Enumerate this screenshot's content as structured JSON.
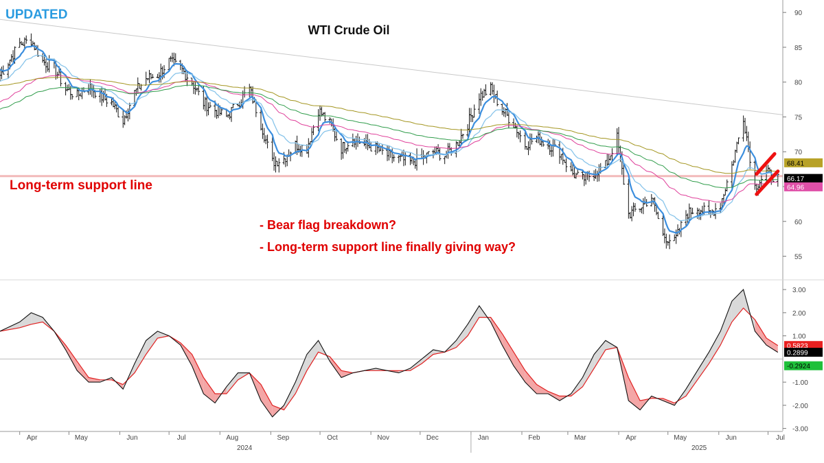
{
  "chart_data": [
    {
      "type": "line",
      "subtype": "ohlc-bars",
      "title": "WTI Crude Oil",
      "tag": "UPDATED",
      "annotations": {
        "support_label": "Long-term support line",
        "notes": [
          "- Bear flag breakdown?",
          "- Long-term support line finally giving way?"
        ]
      },
      "ylim": [
        52,
        91
      ],
      "y_ticks": [
        "55",
        "60",
        "65",
        "70",
        "75",
        "80",
        "85",
        "90"
      ],
      "y_tick_values": [
        55,
        60,
        65,
        70,
        75,
        80,
        85,
        90
      ],
      "x_month_labels": [
        "Apr",
        "May",
        "Jun",
        "Jul",
        "Aug",
        "Sep",
        "Oct",
        "Nov",
        "Dec",
        "Jan",
        "Feb",
        "Mar",
        "Apr",
        "May",
        "Jun",
        "Jul"
      ],
      "x_year_labels": [
        "2024",
        "2025"
      ],
      "support_level": 66.5,
      "downtrend_line": {
        "x": [
          "2024-03-20",
          "2025-07-10"
        ],
        "y": [
          89,
          75.3
        ]
      },
      "flag_lines": [
        {
          "x": [
            "2025-06-24",
            "2025-07-05"
          ],
          "y": [
            66.8,
            69.7
          ]
        },
        {
          "x": [
            "2025-06-24",
            "2025-07-07"
          ],
          "y": [
            63.9,
            67.2
          ]
        }
      ],
      "close": {
        "x": [
          "2024-03-20",
          "2024-04-01",
          "2024-04-08",
          "2024-04-15",
          "2024-04-22",
          "2024-04-29",
          "2024-05-06",
          "2024-05-13",
          "2024-05-20",
          "2024-05-27",
          "2024-06-03",
          "2024-06-10",
          "2024-06-17",
          "2024-06-24",
          "2024-07-01",
          "2024-07-08",
          "2024-07-15",
          "2024-07-22",
          "2024-07-29",
          "2024-08-05",
          "2024-08-12",
          "2024-08-19",
          "2024-08-26",
          "2024-09-02",
          "2024-09-09",
          "2024-09-16",
          "2024-09-23",
          "2024-09-30",
          "2024-10-07",
          "2024-10-14",
          "2024-10-21",
          "2024-10-28",
          "2024-11-04",
          "2024-11-11",
          "2024-11-18",
          "2024-11-25",
          "2024-12-02",
          "2024-12-09",
          "2024-12-16",
          "2024-12-23",
          "2024-12-30",
          "2025-01-06",
          "2025-01-13",
          "2025-01-20",
          "2025-01-27",
          "2025-02-03",
          "2025-02-10",
          "2025-02-17",
          "2025-02-24",
          "2025-03-03",
          "2025-03-10",
          "2025-03-17",
          "2025-03-24",
          "2025-03-31",
          "2025-04-07",
          "2025-04-14",
          "2025-04-21",
          "2025-04-28",
          "2025-05-05",
          "2025-05-12",
          "2025-05-19",
          "2025-05-26",
          "2025-06-02",
          "2025-06-09",
          "2025-06-16",
          "2025-06-23",
          "2025-06-30",
          "2025-07-07"
        ],
        "y": [
          81,
          85.5,
          86,
          83,
          82,
          79,
          78,
          79.5,
          78,
          77,
          74.5,
          78.5,
          80.5,
          81,
          83,
          82,
          80,
          77,
          76,
          75,
          77,
          79,
          74,
          68.5,
          69,
          71,
          70.5,
          76,
          74,
          70.5,
          72,
          71,
          70.5,
          69.5,
          69,
          68.5,
          69,
          70,
          69.5,
          71,
          74,
          78,
          79,
          76,
          74,
          71,
          72,
          71,
          70,
          67,
          66,
          67,
          68,
          72,
          61,
          62,
          63.5,
          58,
          57,
          61,
          62,
          61,
          62.5,
          68,
          75,
          65,
          67,
          66.2
        ]
      },
      "bar_range_y": [
        55,
        88
      ],
      "series": [
        {
          "name": "",
          "color": "#3b8ede",
          "values_ref": "close-smoothed-fast"
        },
        {
          "name": "",
          "color": "#88c4ea",
          "values_ref": "close-smoothed-slow"
        },
        {
          "name": "",
          "color": "#df3f9a",
          "values_ref": "close-smoothed-100"
        },
        {
          "name": "",
          "color": "#2f9c4a",
          "values_ref": "close-smoothed-150"
        },
        {
          "name": "",
          "color": "#a3951f",
          "values_ref": "close-smoothed-200"
        }
      ],
      "price_badges": [
        {
          "text": "68.41",
          "color": "#b8a227",
          "text_color": "#000000",
          "value": 68.41
        },
        {
          "text": "66.17",
          "color": "#000000",
          "text_color": "#ffffff",
          "value": 66.17
        },
        {
          "text": "64.96",
          "color": "#e050a8",
          "text_color": "#ffffff",
          "value": 64.96
        }
      ],
      "colors": {
        "support": "#f2b9b9",
        "annotation": "#e00000",
        "tag": "#2a9be0",
        "flag": "#ee1111",
        "trend": "#c8c8c8"
      }
    },
    {
      "type": "area",
      "subtype": "oscillator",
      "ylim": [
        -3.1,
        3.3
      ],
      "y_ticks": [
        "3.00",
        "2.00",
        "1.00",
        "-1.00",
        "-2.00",
        "-3.00"
      ],
      "y_tick_values": [
        3,
        2,
        1,
        -1,
        -2,
        -3
      ],
      "zero_line": 0,
      "oscillator": {
        "x": [
          "2024-03-20",
          "2024-04-01",
          "2024-04-08",
          "2024-04-15",
          "2024-04-22",
          "2024-04-29",
          "2024-05-06",
          "2024-05-13",
          "2024-05-20",
          "2024-05-27",
          "2024-06-03",
          "2024-06-10",
          "2024-06-17",
          "2024-06-24",
          "2024-07-01",
          "2024-07-08",
          "2024-07-15",
          "2024-07-22",
          "2024-07-29",
          "2024-08-05",
          "2024-08-12",
          "2024-08-19",
          "2024-08-26",
          "2024-09-02",
          "2024-09-09",
          "2024-09-16",
          "2024-09-23",
          "2024-09-30",
          "2024-10-07",
          "2024-10-14",
          "2024-10-21",
          "2024-10-28",
          "2024-11-04",
          "2024-11-11",
          "2024-11-18",
          "2024-11-25",
          "2024-12-02",
          "2024-12-09",
          "2024-12-16",
          "2024-12-23",
          "2024-12-30",
          "2025-01-06",
          "2025-01-13",
          "2025-01-20",
          "2025-01-27",
          "2025-02-03",
          "2025-02-10",
          "2025-02-17",
          "2025-02-24",
          "2025-03-03",
          "2025-03-10",
          "2025-03-17",
          "2025-03-24",
          "2025-03-31",
          "2025-04-07",
          "2025-04-14",
          "2025-04-21",
          "2025-04-28",
          "2025-05-05",
          "2025-05-12",
          "2025-05-19",
          "2025-05-26",
          "2025-06-02",
          "2025-06-09",
          "2025-06-16",
          "2025-06-23",
          "2025-06-30",
          "2025-07-07"
        ],
        "macd": [
          1.2,
          1.6,
          2.0,
          1.8,
          1.2,
          0.4,
          -0.5,
          -1.0,
          -1.0,
          -0.8,
          -1.3,
          -0.2,
          0.8,
          1.2,
          1.0,
          0.6,
          -0.3,
          -1.5,
          -1.9,
          -1.2,
          -0.6,
          -0.6,
          -1.8,
          -2.5,
          -2.0,
          -1.0,
          0.2,
          0.8,
          -0.1,
          -0.8,
          -0.6,
          -0.5,
          -0.4,
          -0.5,
          -0.6,
          -0.4,
          0.0,
          0.4,
          0.3,
          0.8,
          1.5,
          2.3,
          1.6,
          0.6,
          -0.3,
          -1.0,
          -1.5,
          -1.5,
          -1.8,
          -1.5,
          -0.8,
          0.2,
          0.8,
          0.5,
          -1.8,
          -2.2,
          -1.6,
          -1.8,
          -2.0,
          -1.3,
          -0.5,
          0.3,
          1.2,
          2.5,
          3.0,
          1.2,
          0.6,
          0.29
        ],
        "signal": [
          1.2,
          1.35,
          1.5,
          1.6,
          1.2,
          0.6,
          -0.1,
          -0.8,
          -0.9,
          -0.9,
          -1.1,
          -0.6,
          0.2,
          0.9,
          1.0,
          0.7,
          0.2,
          -0.8,
          -1.5,
          -1.5,
          -0.9,
          -0.6,
          -1.1,
          -2.0,
          -2.2,
          -1.5,
          -0.5,
          0.3,
          0.1,
          -0.5,
          -0.6,
          -0.5,
          -0.5,
          -0.5,
          -0.5,
          -0.5,
          -0.2,
          0.2,
          0.3,
          0.5,
          1.0,
          1.8,
          1.8,
          1.1,
          0.3,
          -0.5,
          -1.1,
          -1.4,
          -1.6,
          -1.6,
          -1.2,
          -0.4,
          0.4,
          0.5,
          -0.8,
          -1.8,
          -1.7,
          -1.7,
          -1.9,
          -1.6,
          -0.9,
          -0.2,
          0.6,
          1.6,
          2.2,
          1.7,
          0.9,
          0.58
        ]
      },
      "value_badges": [
        {
          "text": "0.5823",
          "color": "#e82020",
          "text_color": "#ffffff",
          "value": 0.5823
        },
        {
          "text": "0.2899",
          "color": "#000000",
          "text_color": "#ffffff",
          "value": 0.2899
        },
        {
          "text": "-0.2924",
          "color": "#1fc03a",
          "text_color": "#000000",
          "value": -0.2924
        }
      ],
      "colors": {
        "macd": "#111111",
        "signal": "#e02020",
        "fill_up": "#d9d9d9",
        "fill_down": "#f4a6a6"
      }
    }
  ]
}
